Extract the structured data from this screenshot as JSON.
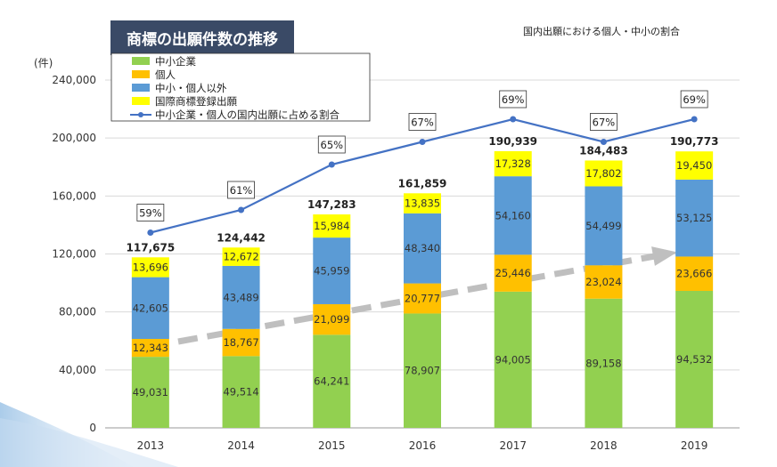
{
  "title": "商標の出願件数の推移",
  "subtitle": "国内出願における個人・中小の割合",
  "colors": {
    "sme": "#92d050",
    "individual": "#ffc000",
    "other": "#5b9bd5",
    "international": "#ffff00",
    "ratio_line": "#4472c4",
    "trend_arrow": "#bfbfbf",
    "title_bg": "#3a4a66"
  },
  "chart_data": {
    "type": "bar",
    "stacked": true,
    "y_unit_label": "(件)",
    "ylim": [
      0,
      240000
    ],
    "yticks": [
      "0",
      "40,000",
      "80,000",
      "120,000",
      "160,000",
      "200,000",
      "240,000"
    ],
    "ytick_values": [
      0,
      40000,
      80000,
      120000,
      160000,
      200000,
      240000
    ],
    "grid": true,
    "legend_position": "top-left",
    "categories": [
      "2013",
      "2014",
      "2015",
      "2016",
      "2017",
      "2018",
      "2019"
    ],
    "series": [
      {
        "name": "中小企業",
        "key": "sme",
        "values": [
          49031,
          49514,
          64241,
          78907,
          94005,
          89158,
          94532
        ],
        "labels": [
          "49,031",
          "49,514",
          "64,241",
          "78,907",
          "94,005",
          "89,158",
          "94,532"
        ]
      },
      {
        "name": "個人",
        "key": "individual",
        "values": [
          12343,
          18767,
          21099,
          20777,
          25446,
          23024,
          23666
        ],
        "labels": [
          "12,343",
          "18,767",
          "21,099",
          "20,777",
          "25,446",
          "23,024",
          "23,666"
        ]
      },
      {
        "name": "中小・個人以外",
        "key": "other",
        "values": [
          42605,
          43489,
          45959,
          48340,
          54160,
          54499,
          53125
        ],
        "labels": [
          "42,605",
          "43,489",
          "45,959",
          "48,340",
          "54,160",
          "54,499",
          "53,125"
        ]
      },
      {
        "name": "国際商標登録出願",
        "key": "international",
        "values": [
          13696,
          12672,
          15984,
          13835,
          17328,
          17802,
          19450
        ],
        "labels": [
          "13,696",
          "12,672",
          "15,984",
          "13,835",
          "17,328",
          "17,802",
          "19,450"
        ]
      }
    ],
    "totals": [
      "117,675",
      "124,442",
      "147,283",
      "161,859",
      "190,939",
      "184,483",
      "190,773"
    ],
    "ratio_line": {
      "name": "中小企業・個人の国内出願に占める割合",
      "values": [
        59,
        61,
        65,
        67,
        69,
        67,
        69
      ],
      "labels": [
        "59%",
        "61%",
        "65%",
        "67%",
        "69%",
        "67%",
        "69%"
      ]
    }
  }
}
